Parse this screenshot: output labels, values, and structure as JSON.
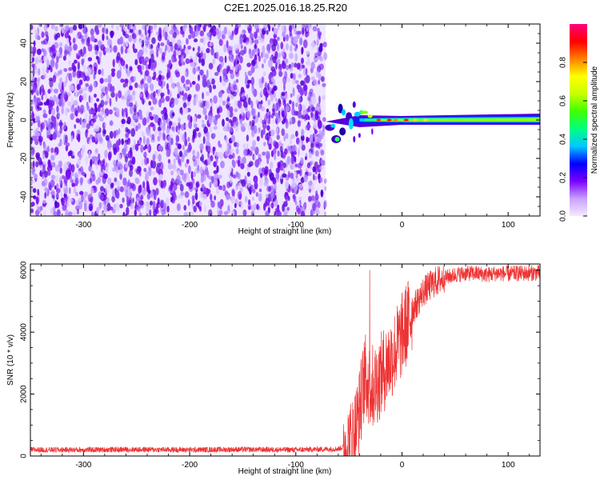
{
  "title": "C2E1.2025.016.18.25.R20",
  "colors": {
    "snr_line": "#ee3333",
    "axis": "#000000",
    "noise_dark": "#6a00e8",
    "noise_light": "#d9c6ff"
  },
  "chart_data": [
    {
      "type": "heatmap",
      "xlabel": "Height of straight line (km)",
      "ylabel": "Frequency (Hz)",
      "xlim": [
        -350,
        130
      ],
      "ylim": [
        -50,
        50
      ],
      "xticks": [
        -300,
        -200,
        -100,
        0,
        100
      ],
      "yticks": [
        -40,
        -20,
        0,
        20,
        40
      ],
      "noise_region_x": [
        -350,
        -72
      ],
      "signal": {
        "onset_x": -72,
        "center_freq_hz": 0,
        "approx_halfwidth_hz": 3
      },
      "colorbar": {
        "label": "Normalized spectral amplitude",
        "range": [
          0.0,
          1.0
        ],
        "ticks": [
          0.0,
          0.2,
          0.4,
          0.6,
          0.8
        ],
        "tick_labels": [
          "0.0",
          "0.2",
          "0.4",
          "0.6",
          "0.8"
        ],
        "stops": [
          "#f4eaff",
          "#c9a0ff",
          "#7a00ff",
          "#0000ff",
          "#00c8ff",
          "#00ff80",
          "#40ff00",
          "#c8ff00",
          "#ffff00",
          "#ff8000",
          "#ff0000",
          "#ff0080"
        ]
      }
    },
    {
      "type": "line",
      "xlabel": "Height of straight line (km)",
      "ylabel": "SNR (10 * v/v)",
      "xlim": [
        -350,
        130
      ],
      "ylim": [
        0,
        6200
      ],
      "xticks": [
        -300,
        -200,
        -100,
        0,
        100
      ],
      "yticks": [
        0,
        2000,
        4000,
        6000
      ],
      "series": [
        {
          "x": [
            -350,
            -300,
            -250,
            -200,
            -150,
            -100,
            -60,
            -50,
            -45,
            -40,
            -35,
            -30,
            -25,
            -20,
            -15,
            -10,
            -5,
            0,
            5,
            10,
            20,
            30,
            40,
            50,
            60,
            70,
            80,
            90,
            100,
            110,
            120,
            130
          ],
          "y": [
            200,
            200,
            210,
            200,
            210,
            200,
            230,
            350,
            700,
            1500,
            2600,
            2200,
            2300,
            2600,
            2900,
            3200,
            3500,
            3900,
            4300,
            4700,
            5300,
            5600,
            5750,
            5850,
            5900,
            5900,
            5850,
            5900,
            5880,
            5900,
            5900,
            5920
          ]
        }
      ]
    }
  ]
}
